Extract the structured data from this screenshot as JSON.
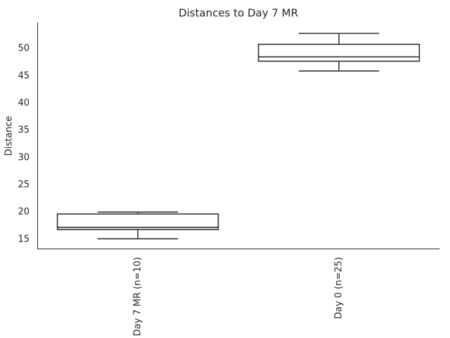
{
  "chart_data": {
    "type": "box",
    "title": "Distances to Day 7 MR",
    "ylabel": "Distance",
    "categories": [
      "Day 7 MR (n=10)",
      "Day 0 (n=25)"
    ],
    "min": [
      15.1,
      45.9
    ],
    "q1": [
      16.8,
      47.7
    ],
    "median": [
      17.2,
      48.5
    ],
    "q3": [
      19.65,
      50.8
    ],
    "max": [
      20.0,
      52.8
    ],
    "color": "#333333",
    "fill": "#ffffff",
    "ylim": [
      13.3,
      54.8
    ],
    "yticks": [
      15,
      20,
      25,
      30,
      35,
      40,
      45,
      50
    ],
    "grid": false
  }
}
